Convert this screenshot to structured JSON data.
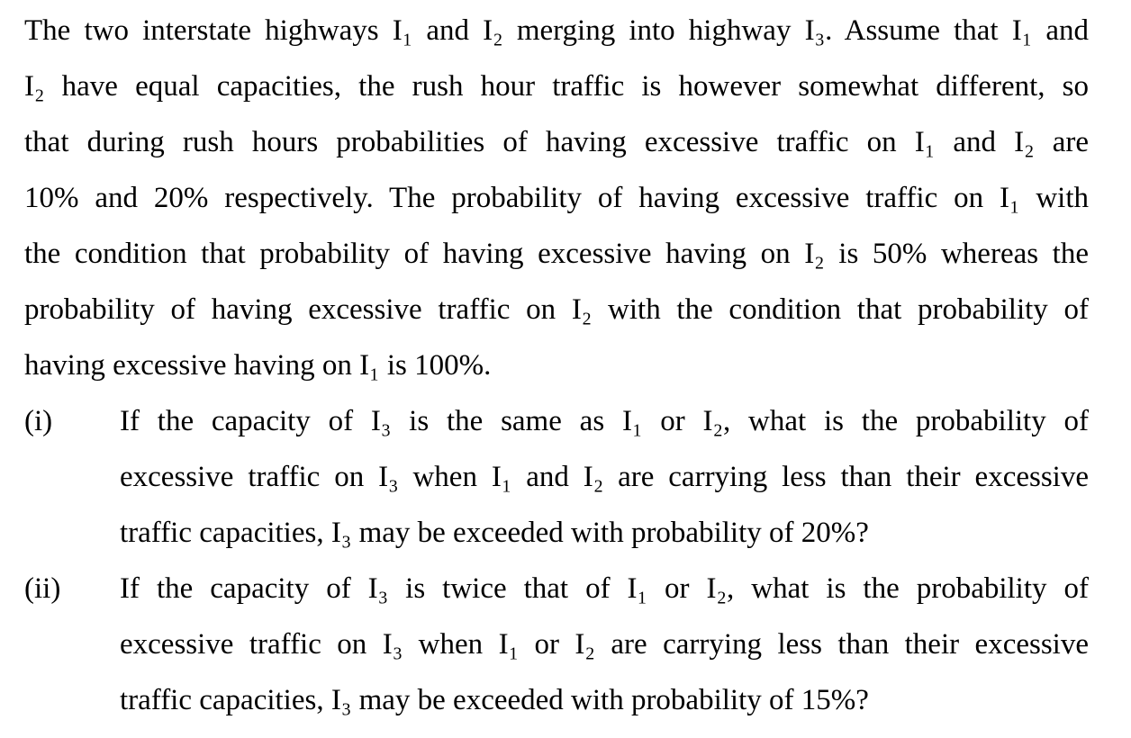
{
  "problem": {
    "intro_lines": [
      "The two interstate highways I₁ and I₂ merging into highway I₃. Assume that I₁ and",
      "I₂ have equal capacities, the rush hour traffic is however somewhat different, so",
      "that during rush hours probabilities of having excessive traffic on I₁ and I₂ are",
      "10% and 20% respectively. The probability of having excessive traffic on I₁ with",
      "the condition that probability of having excessive having on I₂ is 50% whereas the",
      "probability of having excessive traffic on I₂ with the condition that probability of",
      "having excessive having on I₁ is 100%."
    ],
    "parts": [
      {
        "marker": "(i)",
        "lines": [
          "If the capacity of I₃ is the same as I₁ or I₂, what is the probability of",
          "excessive traffic on I₃ when I₁ and I₂ are carrying less than their excessive",
          "traffic capacities, I₃ may be exceeded with probability of 20%?"
        ]
      },
      {
        "marker": "(ii)",
        "lines": [
          "If the capacity of I₃ is twice that of I₁ or I₂, what is the probability of",
          "excessive traffic on I₃ when I₁ or I₂ are carrying less than their excessive",
          "traffic capacities, I₃ may be exceeded with probability of 15%?"
        ]
      }
    ]
  }
}
